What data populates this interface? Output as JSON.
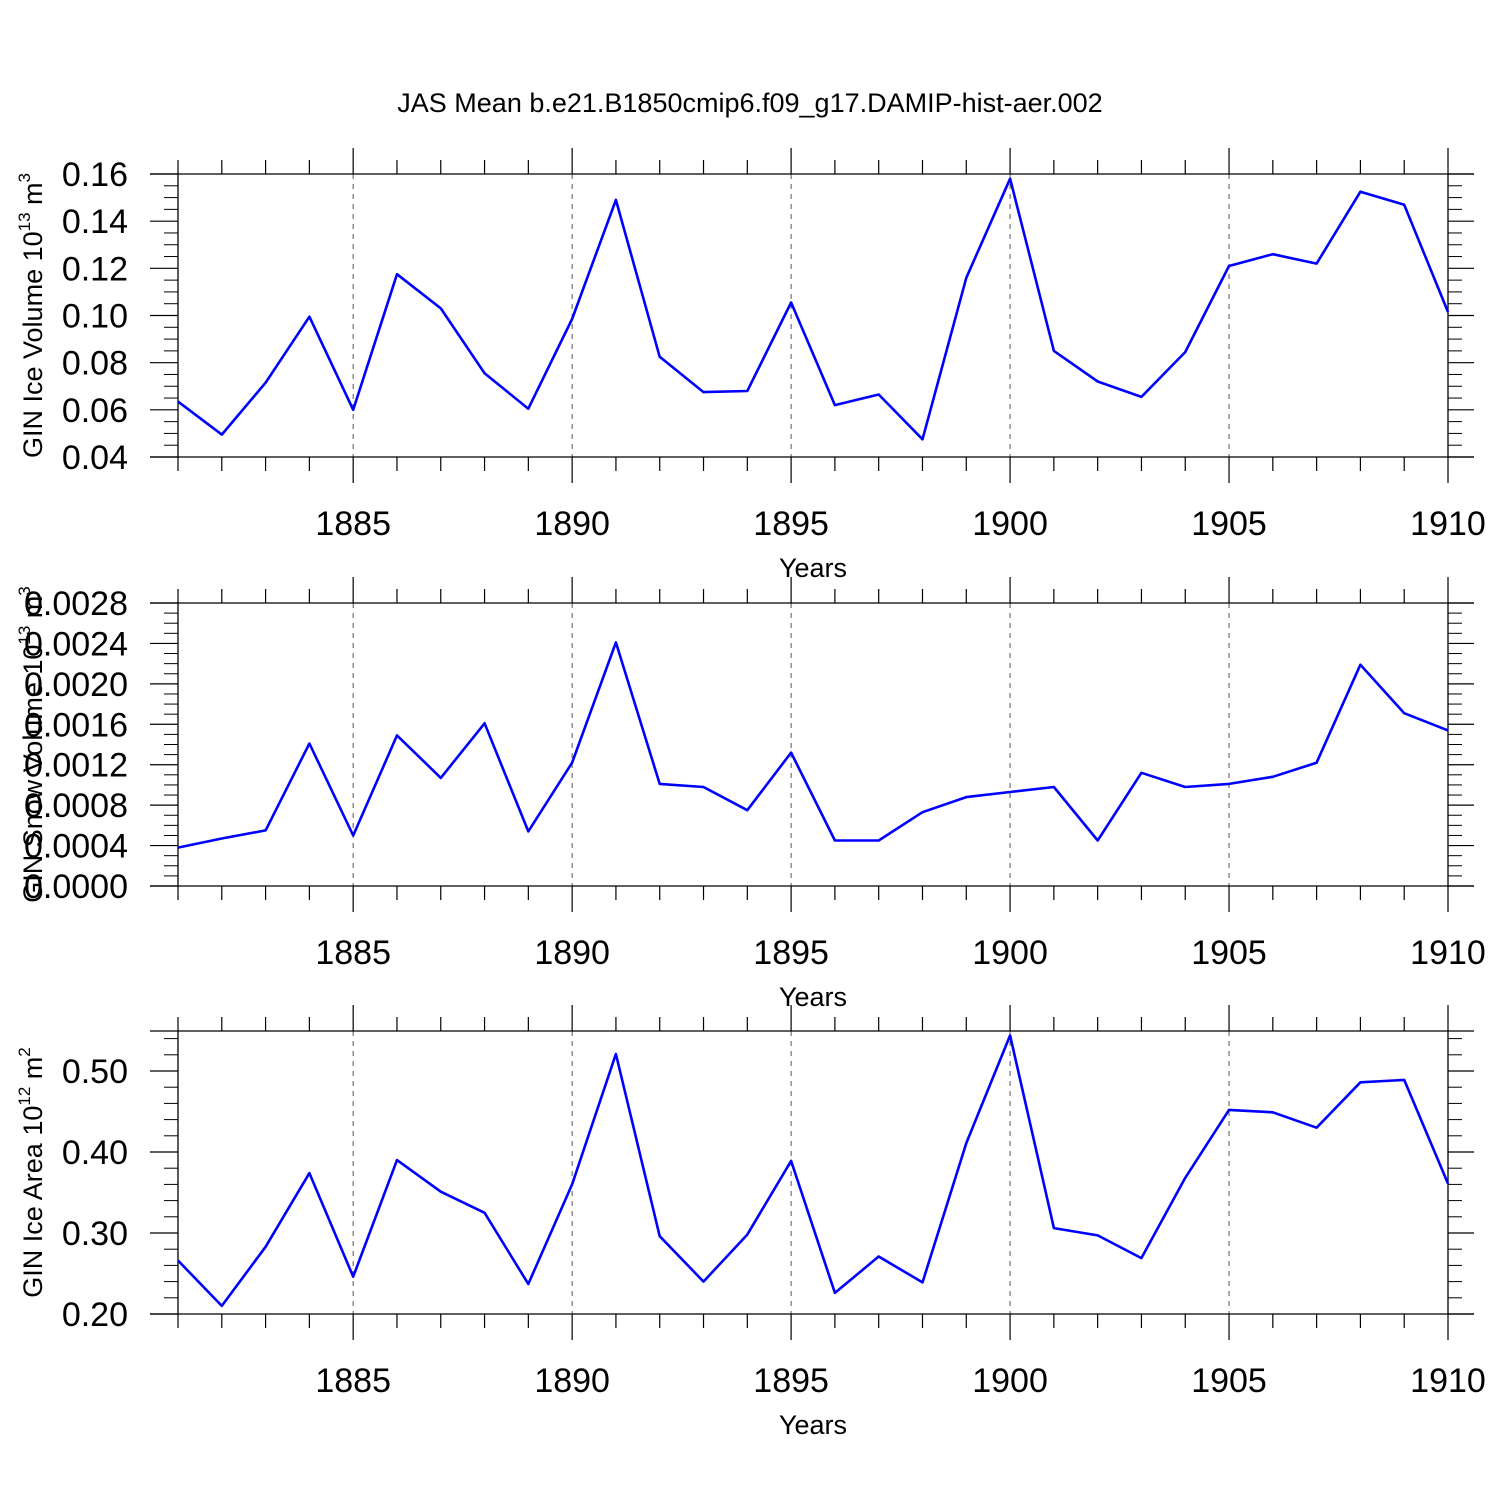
{
  "title": "JAS Mean b.e21.B1850cmip6.f09_g17.DAMIP-hist-aer.002",
  "colors": {
    "line": "#0000ff",
    "axis": "#000000",
    "grid": "#555555"
  },
  "chart_data": [
    {
      "type": "line",
      "ylabel": {
        "text": "GIN Ice Volume 10",
        "sup": "13",
        "unit": " m",
        "unit_sup": "3"
      },
      "xlabel": "Years",
      "xlim": [
        1881,
        1910
      ],
      "ylim": [
        0.04,
        0.165
      ],
      "ymin_clip": 0.04,
      "yticks": [
        0.04,
        0.06,
        0.08,
        0.1,
        0.12,
        0.14,
        0.16
      ],
      "ytick_labels": [
        "0.04",
        "0.06",
        "0.08",
        "0.10",
        "0.12",
        "0.14",
        "0.16"
      ],
      "yminor": [
        0.045,
        0.05,
        0.055,
        0.065,
        0.07,
        0.075,
        0.085,
        0.09,
        0.095,
        0.105,
        0.11,
        0.115,
        0.125,
        0.13,
        0.135,
        0.145,
        0.15,
        0.155
      ],
      "series": [
        {
          "name": "GIN Ice Volume",
          "x": [
            1881,
            1882,
            1883,
            1884,
            1885,
            1886,
            1887,
            1888,
            1889,
            1890,
            1891,
            1892,
            1893,
            1894,
            1895,
            1896,
            1897,
            1898,
            1899,
            1900,
            1901,
            1902,
            1903,
            1904,
            1905,
            1906,
            1907,
            1908,
            1909,
            1910
          ],
          "values": [
            0.0635,
            0.0495,
            0.0715,
            0.0995,
            0.06,
            0.1175,
            0.103,
            0.0755,
            0.0605,
            0.0985,
            0.149,
            0.0825,
            0.0675,
            0.068,
            0.1055,
            0.062,
            0.0665,
            0.0475,
            0.116,
            0.158,
            0.085,
            0.072,
            0.0655,
            0.0845,
            0.121,
            0.126,
            0.122,
            0.1525,
            0.147,
            0.1015
          ]
        }
      ]
    },
    {
      "type": "line",
      "ylabel": {
        "text": "GIN Snow Volume 10",
        "sup": "13",
        "unit": " m",
        "unit_sup": "3"
      },
      "xlabel": "Years",
      "xlim": [
        1881,
        1910
      ],
      "ylim": [
        0.0,
        0.0029
      ],
      "ymin_clip": 0.0,
      "yticks": [
        0.0,
        0.0004,
        0.0008,
        0.0012,
        0.0016,
        0.002,
        0.0024,
        0.0028
      ],
      "ytick_labels": [
        "0.0000",
        "0.0004",
        "0.0008",
        "0.0012",
        "0.0016",
        "0.0020",
        "0.0024",
        "0.0028"
      ],
      "yminor": [
        0.0001,
        0.0002,
        0.0003,
        0.0005,
        0.0006,
        0.0007,
        0.0009,
        0.001,
        0.0011,
        0.0013,
        0.0014,
        0.0015,
        0.0017,
        0.0018,
        0.0019,
        0.0021,
        0.0022,
        0.0023,
        0.0025,
        0.0026,
        0.0027
      ],
      "series": [
        {
          "name": "GIN Snow Volume",
          "x": [
            1881,
            1882,
            1883,
            1884,
            1885,
            1886,
            1887,
            1888,
            1889,
            1890,
            1891,
            1892,
            1893,
            1894,
            1895,
            1896,
            1897,
            1898,
            1899,
            1900,
            1901,
            1902,
            1903,
            1904,
            1905,
            1906,
            1907,
            1908,
            1909,
            1910
          ],
          "values": [
            0.00038,
            0.00047,
            0.00055,
            0.00141,
            0.0005,
            0.00149,
            0.00107,
            0.00161,
            0.00054,
            0.00122,
            0.00241,
            0.00101,
            0.00098,
            0.00075,
            0.00132,
            0.00045,
            0.00045,
            0.00073,
            0.00088,
            0.00093,
            0.00098,
            0.00045,
            0.00112,
            0.00098,
            0.00101,
            0.00108,
            0.00122,
            0.00219,
            0.00171,
            0.00154
          ]
        }
      ]
    },
    {
      "type": "line",
      "ylabel": {
        "text": "GIN Ice Area 10",
        "sup": "12",
        "unit": " m",
        "unit_sup": "2"
      },
      "xlabel": "Years",
      "xlim": [
        1881,
        1910
      ],
      "ylim": [
        0.2,
        0.551
      ],
      "ymin_clip": 0.2,
      "yticks": [
        0.2,
        0.3,
        0.4,
        0.5
      ],
      "ytick_labels": [
        "0.20",
        "0.30",
        "0.40",
        "0.50"
      ],
      "yminor": [
        0.22,
        0.24,
        0.26,
        0.28,
        0.32,
        0.34,
        0.36,
        0.38,
        0.42,
        0.44,
        0.46,
        0.48,
        0.52,
        0.54
      ],
      "series": [
        {
          "name": "GIN Ice Area",
          "x": [
            1881,
            1882,
            1883,
            1884,
            1885,
            1886,
            1887,
            1888,
            1889,
            1890,
            1891,
            1892,
            1893,
            1894,
            1895,
            1896,
            1897,
            1898,
            1899,
            1900,
            1901,
            1902,
            1903,
            1904,
            1905,
            1906,
            1907,
            1908,
            1909,
            1910
          ],
          "values": [
            0.266,
            0.21,
            0.283,
            0.374,
            0.246,
            0.39,
            0.351,
            0.325,
            0.237,
            0.36,
            0.521,
            0.296,
            0.24,
            0.298,
            0.389,
            0.226,
            0.271,
            0.239,
            0.411,
            0.544,
            0.306,
            0.297,
            0.269,
            0.368,
            0.452,
            0.449,
            0.43,
            0.486,
            0.489,
            0.361
          ]
        }
      ]
    }
  ],
  "xticks": [
    1885,
    1890,
    1895,
    1900,
    1905,
    1910
  ],
  "xtick_labels": [
    "1885",
    "1890",
    "1895",
    "1900",
    "1905",
    "1910"
  ]
}
